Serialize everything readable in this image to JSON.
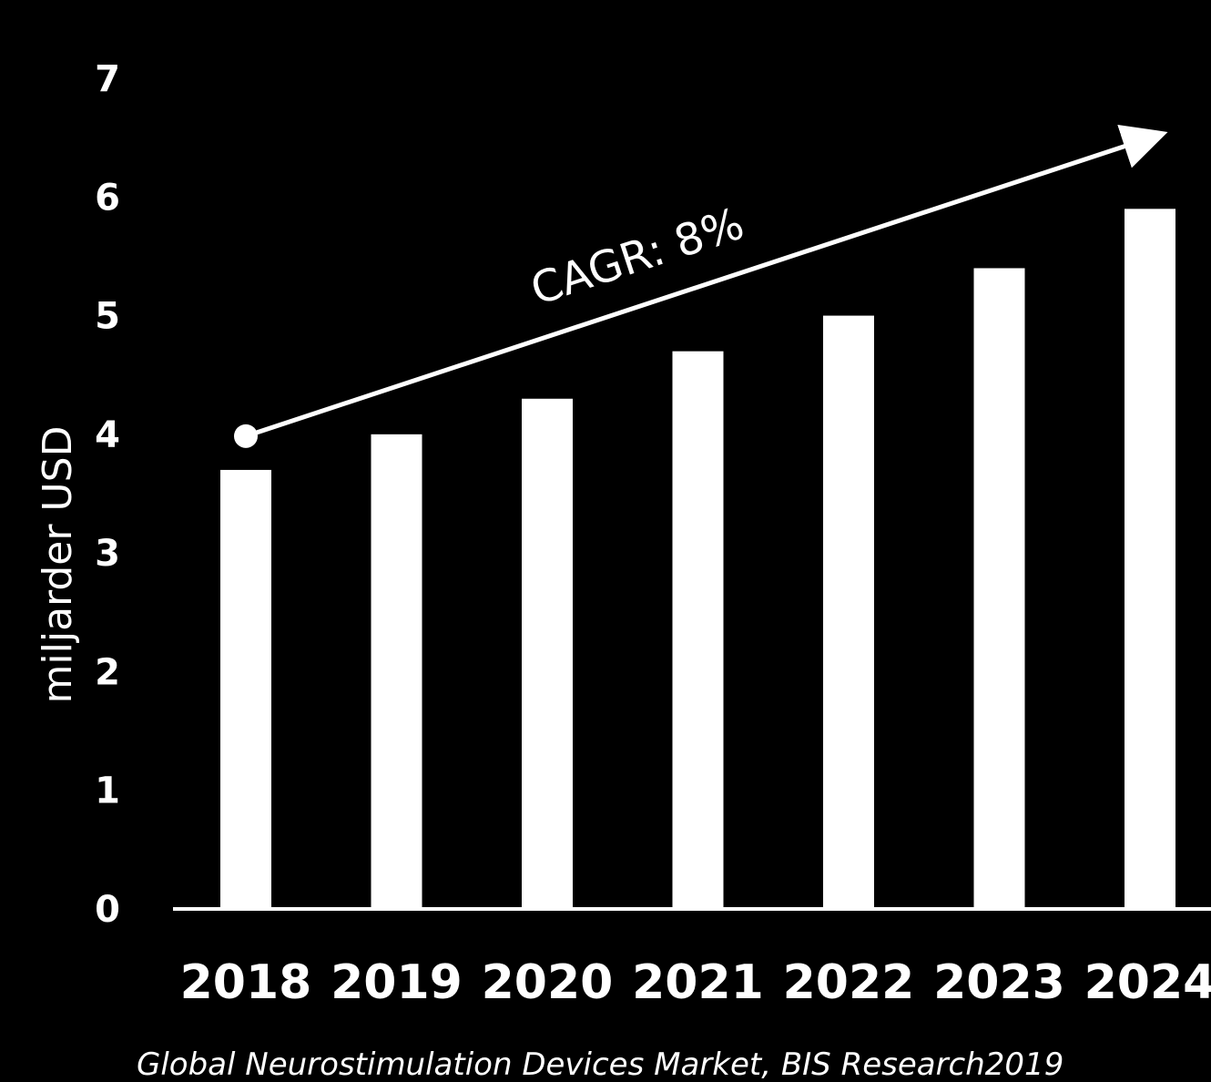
{
  "chart_data": {
    "type": "bar",
    "categories": [
      "2018",
      "2019",
      "2020",
      "2021",
      "2022",
      "2023",
      "2024"
    ],
    "values": [
      3.7,
      4.0,
      4.3,
      4.7,
      5.0,
      5.4,
      5.9
    ],
    "ylabel": "miljarder USD",
    "xlabel": "",
    "ylim": [
      0,
      7
    ],
    "yticks": [
      "0",
      "1",
      "2",
      "3",
      "4",
      "5",
      "6",
      "7"
    ],
    "grid": false,
    "legend": "none",
    "annotation": {
      "text": "CAGR: 8%",
      "kind": "arrow",
      "start": {
        "x": "2018",
        "y": 4.0
      },
      "end": {
        "x": "2024",
        "y": 6.6
      }
    },
    "source": "Global Neurostimulation Devices Market, BIS Research2019"
  },
  "colors": {
    "background": "#000000",
    "bars": "#ffffff",
    "text": "#ffffff",
    "axis": "#ffffff",
    "arrow": "#ffffff"
  }
}
